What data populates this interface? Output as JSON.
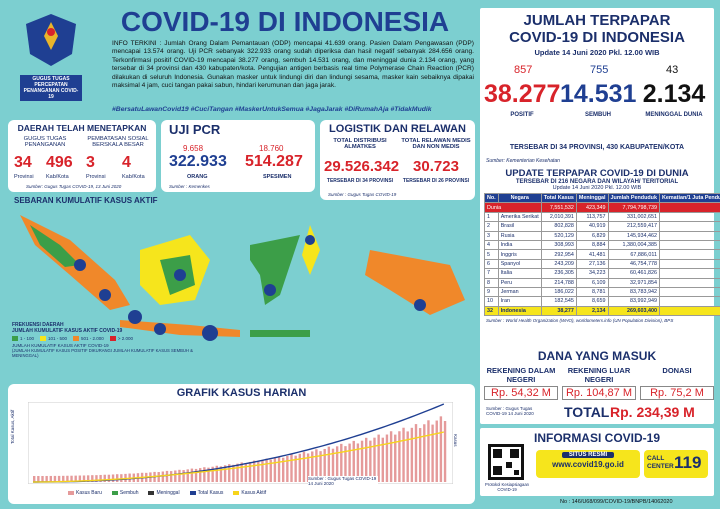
{
  "header": {
    "title": "COVID-19 DI INDONESIA",
    "logo_text": "GUGUS TUGAS PERCEPATAN PENANGANAN COVID-19",
    "info": "INFO TERKINI : Jumlah Orang Dalam Pemantauan (ODP) mencapai 41.639 orang. Pasien Dalam Pengawasan (PDP) mencapai 13.574 orang. Uji PCR sebanyak 322.933 orang sudah diperiksa dan hasil negatif sebanyak 284.656 orang. Terkonfirmasi positif COVID-19 mencapai 38.277 orang, sembuh 14.531 orang, dan meninggal dunia 2.134 orang, yang tersebar di 34 provinsi dan 430 kabupaten/kota. Pengujian antigen berbasis real time Polymerase Chain Reaction (PCR) dilakukan di seluruh Indonesia. Gunakan masker untuk lindungi diri dan lindungi sesama, masker kain sebaiknya dipakai maksimal 4 jam, cuci tangan pakai sabun, hindari kerumunan dan jaga jarak.",
    "hashtags": "#BersatuLawanCovid19 #CuciTangan #MaskerUntukSemua #JagaJarak #DiRumahAja #TidakMudik"
  },
  "daerah": {
    "title": "DAERAH TELAH MENETAPKAN",
    "col1": "GUGUS TUGAS PENANGANAN",
    "col2": "PEMBATASAN SOSIAL BERSKALA BESAR",
    "items": [
      {
        "value": "34",
        "unit": "Provinsi"
      },
      {
        "value": "496",
        "unit": "Kab/Kota"
      },
      {
        "value": "3",
        "unit": "Provinsi"
      },
      {
        "value": "4",
        "unit": "Kab/Kota"
      }
    ],
    "source": "Sumber: Gugus Tugas COVID-19, 13 Juni 2020"
  },
  "uji_pcr": {
    "title": "UJI PCR",
    "items": [
      {
        "delta": "9.658",
        "value": "322.933",
        "label": "ORANG"
      },
      {
        "delta": "18.760",
        "value": "514.287",
        "label": "SPESIMEN"
      }
    ],
    "source": "Sumber : Kemenkes"
  },
  "logistik": {
    "title": "LOGISTIK DAN RELAWAN",
    "source": "Sumber : Gugus Tugas COVID-19",
    "items": [
      {
        "label": "TOTAL DISTRIBUSI ALMATKES",
        "value": "29.526.342",
        "note": "TERSEBAR DI 34 PROVINSI"
      },
      {
        "label": "TOTAL RELAWAN MEDIS DAN NON MEDIS",
        "value": "30.723",
        "note": "TERSEBAR DI 26 PROVINSI"
      }
    ]
  },
  "map": {
    "title": "SEBARAN KUMULATIF KASUS AKTIF",
    "legend_title": "FREKUENSI DAERAH",
    "legend_sub": "JUMLAH KUMULATIF KASUS AKTIF COVID-19",
    "legend": [
      "1 - 100",
      "101 - 500",
      "501 - 2.000",
      "> 2.000"
    ],
    "legend_note": "JUMLAH KUMULATIF KASUS AKTIF COVID-19",
    "legend_note2": "(JUMLAH KUMULATIF KASUS POSITIF DIKURANGI JUMLAH KUMULATIF KASUS SEMBUH & MENINGGAL)"
  },
  "grafik": {
    "title": "GRAFIK KASUS HARIAN",
    "y_label": "Total Kasus, Aktif",
    "y2_label": "Kasus Baru, Sembuh",
    "source": "Sumber : Gugus Tugas COVID-19 14 Juni 2020",
    "legend": [
      "Kasus Baru",
      "Sembuh",
      "Meninggal",
      "Total Kasus",
      "Kasus Aktif"
    ]
  },
  "jumlah": {
    "title": "JUMLAH TERPAPAR",
    "title2": "COVID-19 DI INDONESIA",
    "update": "Update 14 Juni 2020 Pkl. 12.00 WIB",
    "stats": [
      {
        "delta": "857",
        "value": "38.277",
        "label": "POSITIF"
      },
      {
        "delta": "755",
        "value": "14.531",
        "label": "SEMBUH"
      },
      {
        "delta": "43",
        "value": "2.134",
        "label": "MENINGGAL DUNIA"
      }
    ],
    "spread": "TERSEBAR DI 34 PROVINSI, 430 KABUPATEN/KOTA",
    "source": "Sumber: Kementerian Kesehatan"
  },
  "table": {
    "title": "UPDATE TERPAPAR COVID-19 DI DUNIA",
    "subtitle": "TERSEBAR DI 216 NEGARA DAN WILAYAH/ TERITORIAL",
    "update": "Update 14 Juni 2020 Pkl. 12.00 WIB",
    "header": [
      "No.",
      "Negara",
      "Total Kasus",
      "Meninggal",
      "Jumlah Penduduk",
      "Kematian/1 Juta Penduduk"
    ],
    "world": [
      "Dunia",
      "7,551,532",
      "423,349",
      "7,794,798,739"
    ],
    "rows": [
      [
        "1",
        "Amerika Serikat",
        "2,010,391",
        "113,757",
        "331,002,651",
        "344"
      ],
      [
        "2",
        "Brasil",
        "802,828",
        "40,919",
        "212,559,417",
        "193"
      ],
      [
        "3",
        "Rusia",
        "520,129",
        "6,829",
        "145,934,462",
        "47"
      ],
      [
        "4",
        "India",
        "308,993",
        "8,884",
        "1,380,004,385",
        "6"
      ],
      [
        "5",
        "Inggris",
        "292,954",
        "41,481",
        "67,886,011",
        "611"
      ],
      [
        "6",
        "Spanyol",
        "243,209",
        "27,136",
        "46,754,778",
        "580"
      ],
      [
        "7",
        "Italia",
        "236,305",
        "34,223",
        "60,461,826",
        "566"
      ],
      [
        "8",
        "Peru",
        "214,788",
        "6,109",
        "32,971,854",
        "185"
      ],
      [
        "9",
        "Jerman",
        "186,022",
        "8,781",
        "83,783,942",
        "105"
      ],
      [
        "10",
        "Iran",
        "182,545",
        "8,659",
        "83,992,949",
        "103"
      ],
      [
        "32",
        "Indonesia",
        "38,277",
        "2,134",
        "269,603,400",
        "8"
      ]
    ],
    "source": "Sumber : World Health Organization (WHO), worldometers.info (UN Population Division), BPS"
  },
  "dana": {
    "title": "DANA YANG MASUK",
    "items": [
      {
        "label": "REKENING DALAM NEGERI",
        "value": "Rp. 54,32 M"
      },
      {
        "label": "REKENING LUAR NEGERI",
        "value": "Rp. 104,87 M"
      },
      {
        "label": "DONASI",
        "value": "Rp. 75,2 M"
      }
    ],
    "source": "Sumber : Gugus Tugas COVID-19 14 Juni 2020",
    "total_label": "TOTAL",
    "total": "Rp. 234,39 M"
  },
  "informasi": {
    "title": "INFORMASI COVID-19",
    "qr_label": "Protokol Kesiapsiagaan COVID-19",
    "site_label": "SITUS RESMI",
    "site": "www.covid19.go.id",
    "call": "CALL CENTER",
    "call_number": "119"
  },
  "footer": {
    "number": "No : 146/U68/099/COVID-19/BNPB/14062020"
  }
}
